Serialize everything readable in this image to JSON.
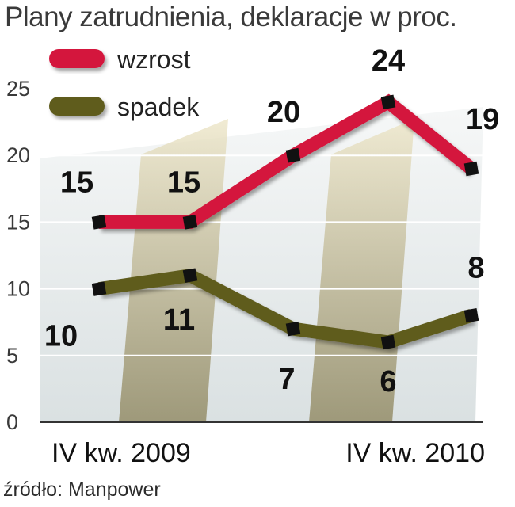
{
  "title": "Plany zatrudnienia, deklaracje w proc.",
  "source": "źródło: Manpower",
  "chart_data": {
    "type": "line",
    "title": "Plany zatrudnienia, deklaracje w proc.",
    "xlabel": "",
    "ylabel": "",
    "categories": [
      "IV kw. 2009",
      "",
      "",
      "",
      "IV kw. 2010"
    ],
    "x_tick_labels": [
      "IV kw. 2009",
      "IV kw. 2010"
    ],
    "y_ticks": [
      0,
      5,
      10,
      15,
      20,
      25
    ],
    "ylim": [
      0,
      25
    ],
    "legend_position": "top-left",
    "series": [
      {
        "name": "wzrost",
        "color": "#d4143c",
        "values": [
          15,
          15,
          20,
          24,
          19
        ]
      },
      {
        "name": "spadek",
        "color": "#5f5c1f",
        "values": [
          10,
          11,
          7,
          6,
          8
        ]
      }
    ]
  }
}
